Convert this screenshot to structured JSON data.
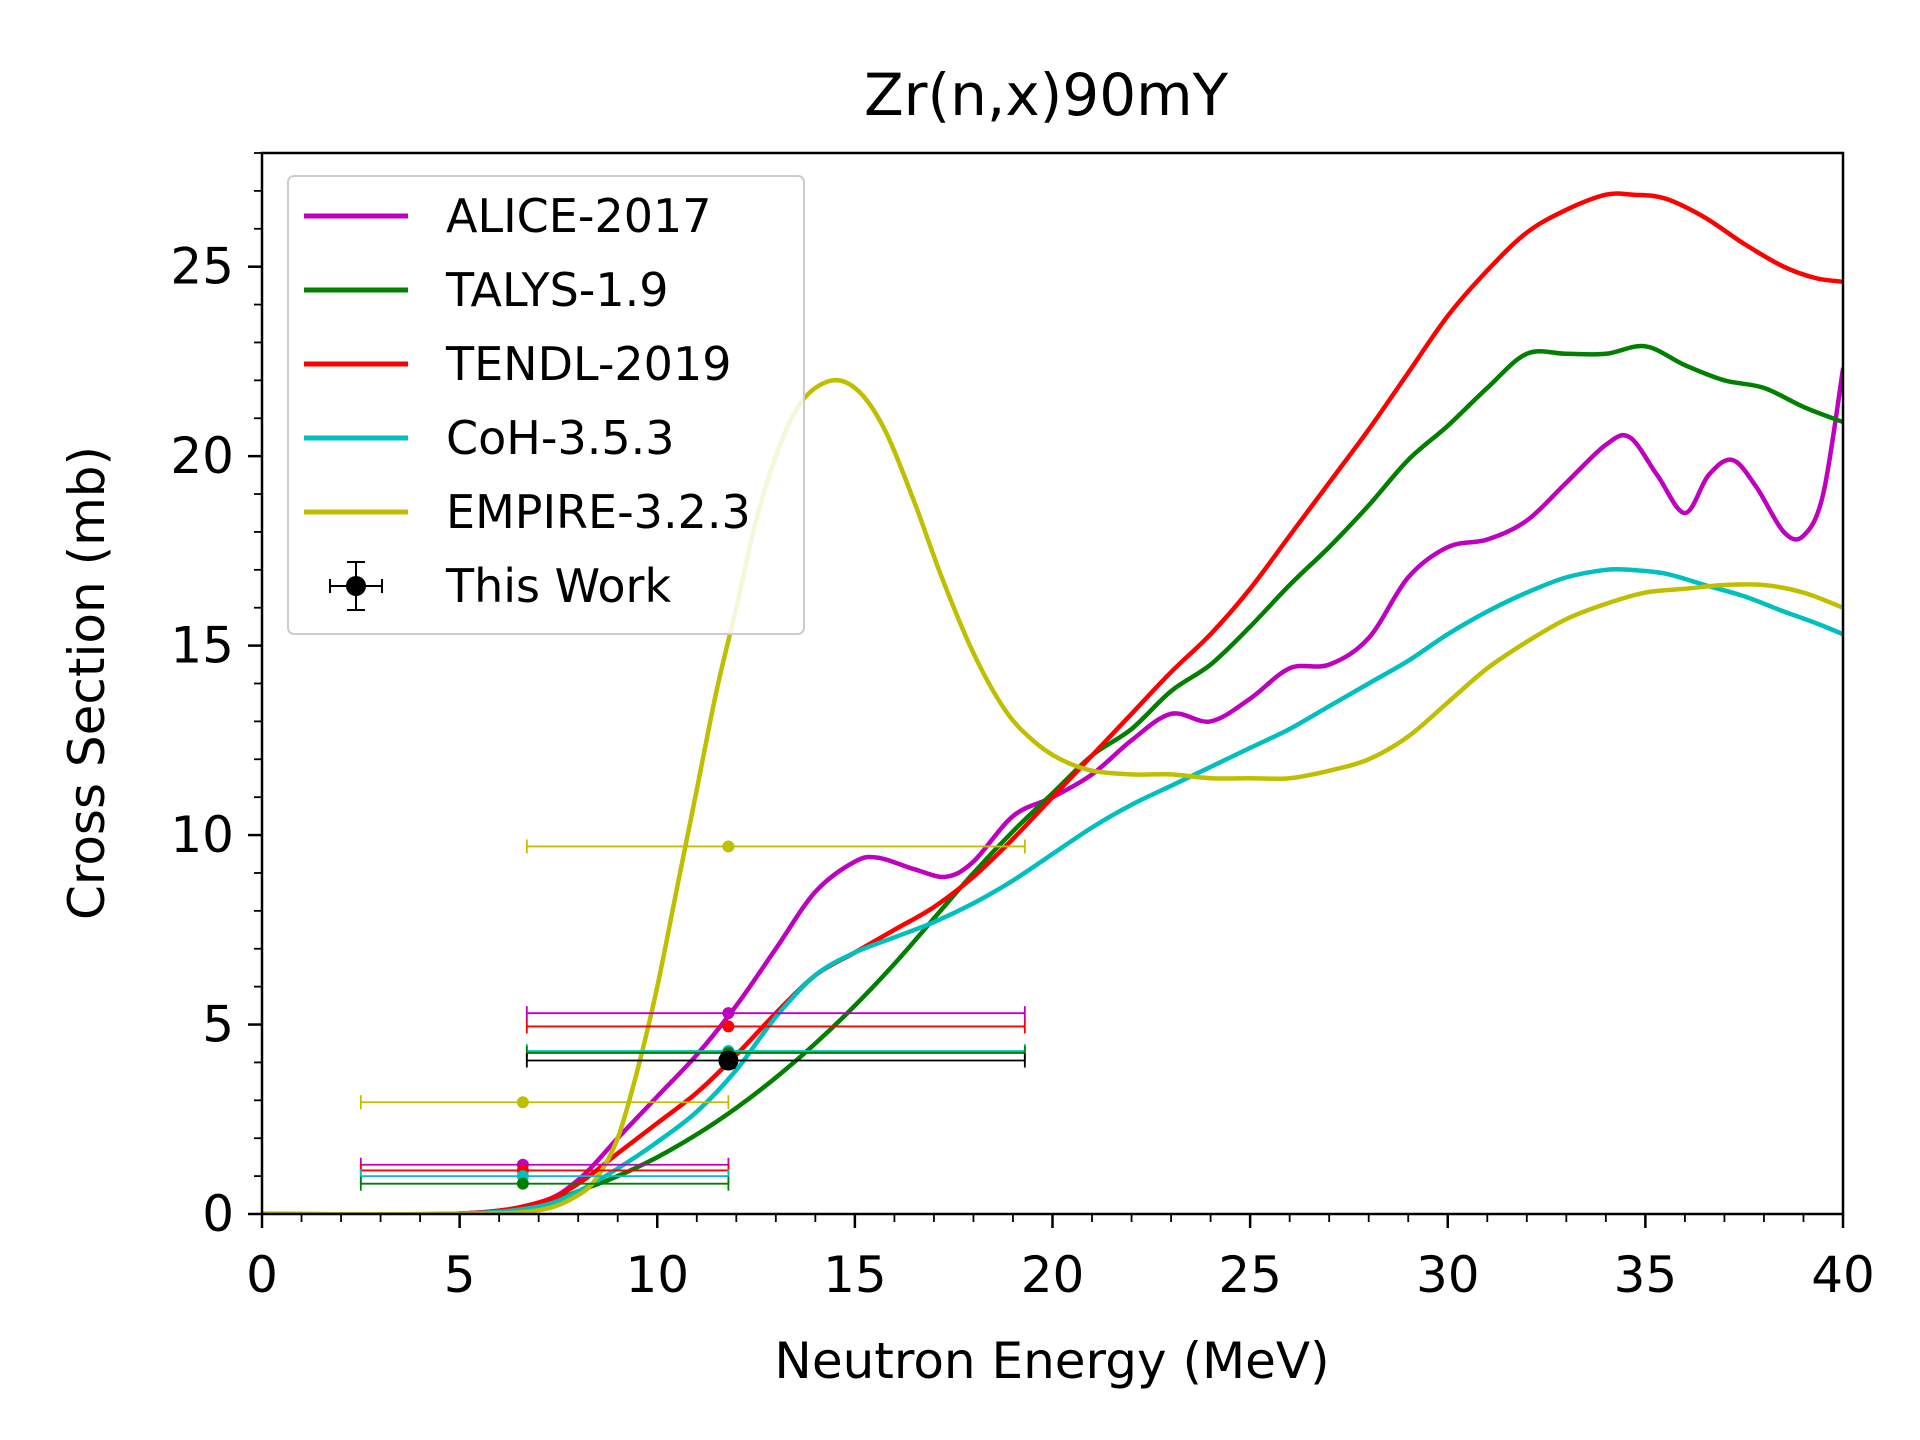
{
  "chart_data": {
    "type": "line",
    "title": "Zr(n,x)90mY",
    "xlabel": "Neutron Energy (MeV)",
    "ylabel": "Cross Section (mb)",
    "xlim": [
      0,
      40
    ],
    "ylim": [
      0,
      28
    ],
    "xticks": [
      0,
      5,
      10,
      15,
      20,
      25,
      30,
      35,
      40
    ],
    "yticks": [
      0,
      5,
      10,
      15,
      20,
      25
    ],
    "grid": false,
    "legend_position": "top-left",
    "series": [
      {
        "name": "ALICE-2017",
        "color": "#bf00bf",
        "x": [
          0,
          5,
          7,
          8,
          9,
          10,
          11,
          12,
          13,
          14,
          15,
          15.6,
          16.5,
          17.3,
          18,
          19,
          20,
          21,
          22,
          23,
          24,
          25,
          26,
          27,
          28,
          29,
          30,
          31,
          32,
          33,
          34,
          34.6,
          35.3,
          36,
          36.6,
          37.2,
          37.8,
          38.5,
          39,
          39.5,
          40
        ],
        "y": [
          0,
          0.01,
          0.3,
          0.9,
          2.0,
          3.1,
          4.2,
          5.5,
          7.0,
          8.5,
          9.3,
          9.4,
          9.1,
          8.9,
          9.3,
          10.5,
          11.0,
          11.6,
          12.5,
          13.2,
          13.0,
          13.6,
          14.4,
          14.5,
          15.2,
          16.8,
          17.6,
          17.8,
          18.3,
          19.3,
          20.3,
          20.5,
          19.5,
          18.5,
          19.5,
          19.9,
          19.2,
          18.0,
          17.9,
          19.0,
          22.3
        ]
      },
      {
        "name": "TALYS-1.9",
        "color": "#007f00",
        "x": [
          0,
          5,
          7,
          8,
          9,
          10,
          11,
          12,
          13,
          14,
          15,
          16,
          17,
          18,
          19,
          20,
          21,
          22,
          23,
          24,
          25,
          26,
          27,
          28,
          29,
          30,
          31,
          32,
          33,
          34,
          35,
          36,
          37,
          38,
          39,
          40
        ],
        "y": [
          0,
          0.01,
          0.25,
          0.6,
          1.0,
          1.5,
          2.1,
          2.8,
          3.6,
          4.5,
          5.5,
          6.6,
          7.8,
          9.0,
          10.1,
          11.1,
          12.1,
          12.8,
          13.8,
          14.5,
          15.5,
          16.6,
          17.6,
          18.7,
          19.9,
          20.8,
          21.8,
          22.7,
          22.7,
          22.7,
          22.9,
          22.4,
          22.0,
          21.8,
          21.3,
          20.9
        ]
      },
      {
        "name": "TENDL-2019",
        "color": "#ff0000",
        "x": [
          0,
          5,
          7,
          8,
          9,
          10,
          11,
          12,
          13,
          14,
          15,
          16,
          17,
          18,
          19,
          20,
          21,
          22,
          23,
          24,
          25,
          26,
          27,
          28,
          29,
          30,
          31,
          32,
          33,
          34,
          34.7,
          35.5,
          36.5,
          37.5,
          38.5,
          39.3,
          40
        ],
        "y": [
          0,
          0.01,
          0.3,
          0.8,
          1.6,
          2.4,
          3.2,
          4.2,
          5.3,
          6.3,
          6.9,
          7.5,
          8.1,
          8.9,
          9.9,
          11.0,
          12.1,
          13.2,
          14.3,
          15.3,
          16.5,
          17.9,
          19.3,
          20.7,
          22.2,
          23.7,
          24.9,
          25.9,
          26.5,
          26.9,
          26.9,
          26.8,
          26.3,
          25.6,
          25.0,
          24.7,
          24.6
        ]
      },
      {
        "name": "CoH-3.5.3",
        "color": "#00bfbf",
        "x": [
          0,
          5,
          7,
          8,
          9,
          10,
          11,
          12,
          13,
          14,
          15,
          16,
          17,
          18,
          19,
          20,
          21,
          22,
          23,
          24,
          25,
          26,
          27,
          28,
          29,
          30,
          31,
          32,
          33,
          34,
          34.6,
          35.5,
          36.5,
          37.5,
          38.5,
          39.3,
          40
        ],
        "y": [
          0,
          0.01,
          0.2,
          0.6,
          1.2,
          1.9,
          2.7,
          3.8,
          5.2,
          6.3,
          6.9,
          7.3,
          7.7,
          8.2,
          8.8,
          9.5,
          10.2,
          10.8,
          11.3,
          11.8,
          12.3,
          12.8,
          13.4,
          14.0,
          14.6,
          15.3,
          15.9,
          16.4,
          16.8,
          17.0,
          17.0,
          16.9,
          16.6,
          16.3,
          15.9,
          15.6,
          15.3
        ]
      },
      {
        "name": "EMPIRE-3.2.3",
        "color": "#bfbf00",
        "x": [
          0,
          5,
          7,
          8,
          8.5,
          9,
          9.5,
          10,
          10.5,
          11,
          11.5,
          12,
          12.5,
          13,
          13.5,
          14,
          14.6,
          15.2,
          15.8,
          16.5,
          17.2,
          18,
          18.8,
          19.5,
          20.2,
          21,
          22,
          23,
          24,
          25,
          26,
          27,
          28,
          29,
          30,
          31,
          32,
          33,
          34,
          35,
          36,
          37,
          38,
          39,
          40
        ],
        "y": [
          0,
          0,
          0.1,
          0.5,
          1.0,
          2.0,
          3.8,
          6.0,
          8.6,
          11.2,
          13.8,
          16.0,
          18.3,
          20.0,
          21.2,
          21.8,
          22.0,
          21.6,
          20.6,
          18.8,
          16.8,
          14.8,
          13.3,
          12.5,
          12.0,
          11.7,
          11.6,
          11.6,
          11.5,
          11.5,
          11.5,
          11.7,
          12.0,
          12.6,
          13.5,
          14.4,
          15.1,
          15.7,
          16.1,
          16.4,
          16.5,
          16.6,
          16.6,
          16.4,
          16.0
        ]
      }
    ],
    "error_points": [
      {
        "series": "ALICE-2017",
        "x": 6.6,
        "y": 1.3,
        "xerr": [
          2.5,
          11.8
        ]
      },
      {
        "series": "TENDL-2019",
        "x": 6.6,
        "y": 1.15,
        "xerr": [
          2.5,
          11.8
        ]
      },
      {
        "series": "CoH-3.5.3",
        "x": 6.6,
        "y": 1.0,
        "xerr": [
          2.5,
          11.8
        ]
      },
      {
        "series": "TALYS-1.9",
        "x": 6.6,
        "y": 0.8,
        "xerr": [
          2.5,
          11.8
        ]
      },
      {
        "series": "EMPIRE-3.2.3",
        "x": 6.6,
        "y": 2.95,
        "xerr": [
          2.5,
          11.8
        ]
      },
      {
        "series": "EMPIRE-3.2.3",
        "x": 11.8,
        "y": 9.7,
        "xerr": [
          6.7,
          19.3
        ]
      },
      {
        "series": "ALICE-2017",
        "x": 11.8,
        "y": 5.3,
        "xerr": [
          6.7,
          19.3
        ]
      },
      {
        "series": "TENDL-2019",
        "x": 11.8,
        "y": 4.95,
        "xerr": [
          6.7,
          19.3
        ]
      },
      {
        "series": "CoH-3.5.3",
        "x": 11.8,
        "y": 4.3,
        "xerr": [
          6.7,
          19.3
        ]
      },
      {
        "series": "TALYS-1.9",
        "x": 11.8,
        "y": 4.25,
        "xerr": [
          6.7,
          19.3
        ]
      }
    ],
    "measurement": {
      "name": "This Work",
      "color": "#000000",
      "x": 11.8,
      "y": 4.05,
      "xerr": [
        6.7,
        19.3
      ],
      "yerr": [
        3.85,
        4.25
      ]
    }
  }
}
